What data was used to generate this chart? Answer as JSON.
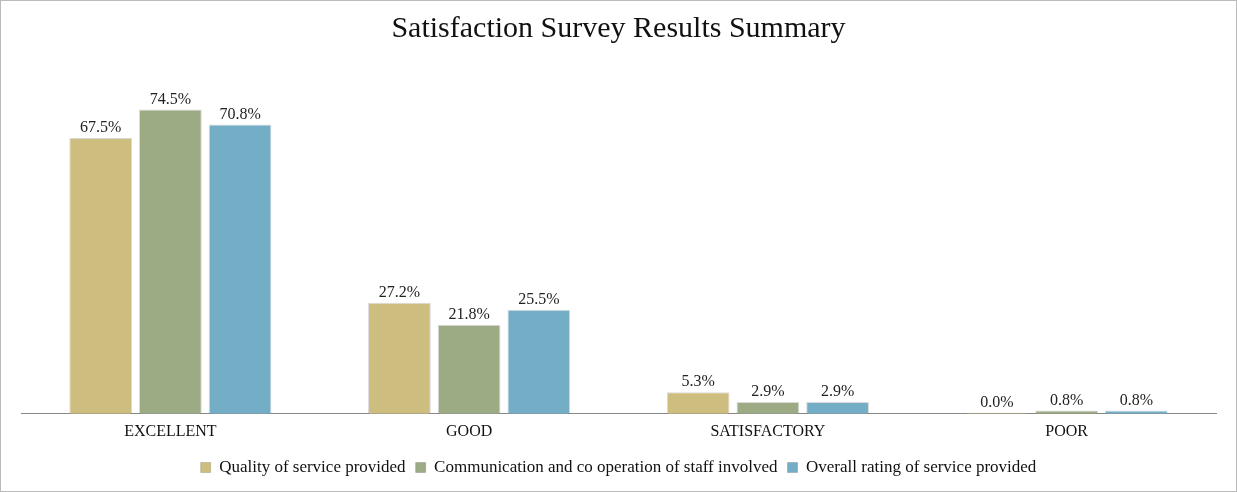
{
  "chart_data": {
    "type": "bar",
    "title": "Satisfaction Survey Results Summary",
    "categories": [
      "EXCELLENT",
      "GOOD",
      "SATISFACTORY",
      "POOR"
    ],
    "series": [
      {
        "name": "Quality of service provided",
        "color": "#cdbd7e",
        "values": [
          67.5,
          27.2,
          5.3,
          0.0
        ],
        "value_labels": [
          "67.5%",
          "27.2%",
          "5.3%",
          "0.0%"
        ]
      },
      {
        "name": "Communication and co operation of staff involved",
        "color": "#9cab84",
        "values": [
          74.5,
          21.8,
          2.9,
          0.8
        ],
        "value_labels": [
          "74.5%",
          "21.8%",
          "2.9%",
          "0.8%"
        ]
      },
      {
        "name": "Overall rating of service provided",
        "color": "#74aec6",
        "values": [
          70.8,
          25.5,
          2.9,
          0.8
        ],
        "value_labels": [
          "70.8%",
          "25.5%",
          "2.9%",
          "0.8%"
        ]
      }
    ],
    "legend": "bottom",
    "grid": false
  }
}
